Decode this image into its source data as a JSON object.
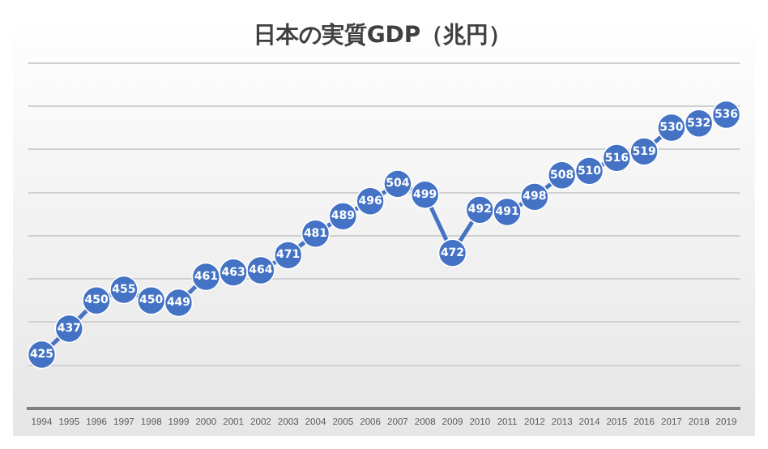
{
  "chart_data": {
    "type": "line",
    "title": "日本の実質GDP（兆円）",
    "categories": [
      "1994",
      "1995",
      "1996",
      "1997",
      "1998",
      "1999",
      "2000",
      "2001",
      "2002",
      "2003",
      "2004",
      "2005",
      "2006",
      "2007",
      "2008",
      "2009",
      "2010",
      "2011",
      "2012",
      "2013",
      "2014",
      "2015",
      "2016",
      "2017",
      "2018",
      "2019"
    ],
    "series": [
      {
        "color": "#4472c4",
        "values": [
          425,
          437,
          450,
          455,
          450,
          449,
          461,
          463,
          464,
          471,
          481,
          489,
          496,
          504,
          499,
          472,
          492,
          491,
          498,
          508,
          510,
          516,
          519,
          530,
          532,
          536
        ]
      }
    ],
    "ylim": [
      400,
      560
    ],
    "yticks": [
      {
        "value": 400,
        "label": null
      },
      {
        "value": 420,
        "label": null
      },
      {
        "value": 440,
        "label": null
      },
      {
        "value": 460,
        "label": null
      },
      {
        "value": 480,
        "label": null
      },
      {
        "value": 500,
        "label": null
      },
      {
        "value": 520,
        "label": null
      },
      {
        "value": 540,
        "label": null
      },
      {
        "value": 560,
        "label": null
      }
    ],
    "tick_labels": "x",
    "grid": "y",
    "legend": false,
    "marker": "circle",
    "line_style": "solid",
    "data_labels": true
  }
}
